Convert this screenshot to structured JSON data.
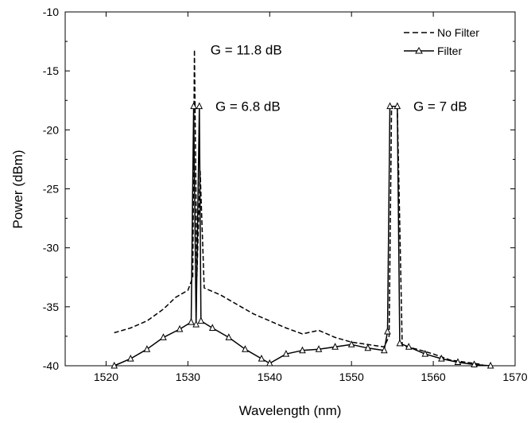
{
  "chart_data": {
    "type": "line",
    "title": "",
    "xlabel": "Wavelength (nm)",
    "ylabel": "Power (dBm)",
    "xlim": [
      1515,
      1570
    ],
    "ylim": [
      -40,
      -10
    ],
    "x_ticks": [
      1520,
      1530,
      1540,
      1550,
      1560,
      1570
    ],
    "y_ticks": [
      -40,
      -35,
      -30,
      -25,
      -20,
      -15,
      -10
    ],
    "grid": false,
    "legend_position": "top-right",
    "series": [
      {
        "name": "No Filter",
        "style": "dashed",
        "color": "#000000",
        "points": [
          [
            1521,
            -37.2
          ],
          [
            1523,
            -36.8
          ],
          [
            1525,
            -36.2
          ],
          [
            1527,
            -35.2
          ],
          [
            1528.5,
            -34.2
          ],
          [
            1530,
            -33.6
          ],
          [
            1530.6,
            -32.5
          ],
          [
            1530.8,
            -13.2
          ],
          [
            1531.1,
            -32.4
          ],
          [
            1531.5,
            -23.5
          ],
          [
            1532,
            -33.4
          ],
          [
            1534,
            -34.0
          ],
          [
            1536,
            -34.8
          ],
          [
            1538,
            -35.6
          ],
          [
            1540,
            -36.2
          ],
          [
            1542,
            -36.8
          ],
          [
            1544,
            -37.3
          ],
          [
            1546,
            -37.0
          ],
          [
            1548,
            -37.6
          ],
          [
            1550,
            -38.0
          ],
          [
            1552,
            -38.2
          ],
          [
            1554,
            -38.4
          ],
          [
            1554.6,
            -37.5
          ],
          [
            1554.9,
            -18.0
          ],
          [
            1555.6,
            -18.0
          ],
          [
            1555.9,
            -28.0
          ],
          [
            1556.2,
            -38.3
          ],
          [
            1558,
            -38.6
          ],
          [
            1560,
            -39.0
          ],
          [
            1562,
            -39.5
          ],
          [
            1564,
            -39.7
          ],
          [
            1566,
            -39.9
          ]
        ]
      },
      {
        "name": "Filter",
        "style": "solid-triangle",
        "color": "#000000",
        "points": [
          [
            1521,
            -40.0
          ],
          [
            1523,
            -39.4
          ],
          [
            1525,
            -38.6
          ],
          [
            1527,
            -37.6
          ],
          [
            1529,
            -36.9
          ],
          [
            1530.4,
            -36.3
          ],
          [
            1530.7,
            -18.0
          ],
          [
            1531.0,
            -36.5
          ],
          [
            1531.4,
            -18.0
          ],
          [
            1531.6,
            -36.2
          ],
          [
            1533,
            -36.8
          ],
          [
            1535,
            -37.6
          ],
          [
            1537,
            -38.6
          ],
          [
            1539,
            -39.4
          ],
          [
            1540,
            -39.8
          ],
          [
            1542,
            -39.0
          ],
          [
            1544,
            -38.7
          ],
          [
            1546,
            -38.6
          ],
          [
            1548,
            -38.4
          ],
          [
            1550,
            -38.2
          ],
          [
            1552,
            -38.5
          ],
          [
            1554,
            -38.7
          ],
          [
            1554.4,
            -37.1
          ],
          [
            1554.7,
            -18.0
          ],
          [
            1555.6,
            -18.0
          ],
          [
            1555.9,
            -38.1
          ],
          [
            1557,
            -38.4
          ],
          [
            1559,
            -39.0
          ],
          [
            1561,
            -39.4
          ],
          [
            1563,
            -39.7
          ],
          [
            1565,
            -39.9
          ],
          [
            1567,
            -40.0
          ]
        ]
      }
    ],
    "annotations": [
      {
        "id": "g1",
        "text": "G = 11.8 dB",
        "x": 1531.4,
        "y": -13.2
      },
      {
        "id": "g2",
        "text": "G = 6.8 dB",
        "x": 1532.0,
        "y": -18.0
      },
      {
        "id": "g3",
        "text": "G = 7 dB",
        "x": 1556.2,
        "y": -18.0
      }
    ]
  }
}
